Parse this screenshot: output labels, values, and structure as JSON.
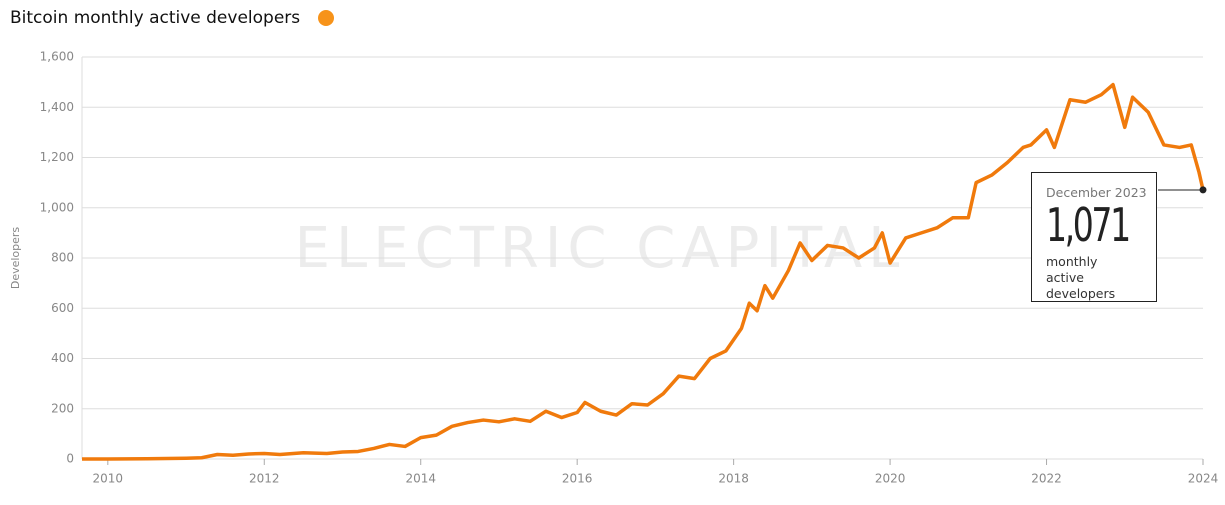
{
  "chart_data": {
    "type": "line",
    "title": "Bitcoin monthly active developers",
    "watermark": "ELECTRIC CAPITAL",
    "y_label": "Developers",
    "x": [
      2009.67,
      2010,
      2010.5,
      2011,
      2011.2,
      2011.4,
      2011.6,
      2011.8,
      2012,
      2012.2,
      2012.5,
      2012.8,
      2013,
      2013.2,
      2013.4,
      2013.6,
      2013.8,
      2014,
      2014.2,
      2014.4,
      2014.6,
      2014.8,
      2015,
      2015.2,
      2015.4,
      2015.6,
      2015.8,
      2016,
      2016.1,
      2016.3,
      2016.5,
      2016.7,
      2016.9,
      2017.1,
      2017.3,
      2017.5,
      2017.7,
      2017.9,
      2018.1,
      2018.2,
      2018.3,
      2018.4,
      2018.5,
      2018.7,
      2018.85,
      2019,
      2019.2,
      2019.4,
      2019.6,
      2019.8,
      2019.9,
      2020,
      2020.2,
      2020.4,
      2020.6,
      2020.8,
      2021,
      2021.1,
      2021.3,
      2021.5,
      2021.7,
      2021.8,
      2022,
      2022.1,
      2022.3,
      2022.5,
      2022.7,
      2022.85,
      2023,
      2023.1,
      2023.3,
      2023.5,
      2023.7,
      2023.85,
      2023.95,
      2024
    ],
    "series": [
      {
        "name": "Bitcoin",
        "color": "#f07a0c",
        "values": [
          0,
          0,
          1,
          3,
          5,
          18,
          15,
          20,
          22,
          18,
          25,
          22,
          28,
          30,
          42,
          58,
          50,
          85,
          95,
          130,
          145,
          155,
          148,
          160,
          150,
          190,
          165,
          185,
          225,
          190,
          175,
          220,
          215,
          260,
          330,
          320,
          400,
          430,
          520,
          620,
          590,
          690,
          640,
          750,
          860,
          790,
          850,
          840,
          800,
          840,
          900,
          780,
          880,
          900,
          920,
          960,
          960,
          1100,
          1130,
          1180,
          1240,
          1250,
          1310,
          1240,
          1430,
          1420,
          1450,
          1490,
          1320,
          1440,
          1380,
          1250,
          1240,
          1250,
          1140,
          1071
        ]
      }
    ],
    "xlim": [
      2009.67,
      2024
    ],
    "xticks": [
      2010,
      2012,
      2014,
      2016,
      2018,
      2020,
      2022,
      2024
    ],
    "ylim": [
      0,
      1600
    ],
    "yticks": [
      0,
      200,
      400,
      600,
      800,
      {
        "value": 1000,
        "label": "1,000"
      },
      {
        "value": 1200,
        "label": "1,200"
      },
      {
        "value": 1400,
        "label": "1,400"
      },
      {
        "value": 1600,
        "label": "1,600"
      }
    ],
    "grid": true,
    "annotation": {
      "date": "December 2023",
      "value": 1071,
      "label": "1,071",
      "text": "monthly active developers"
    }
  }
}
